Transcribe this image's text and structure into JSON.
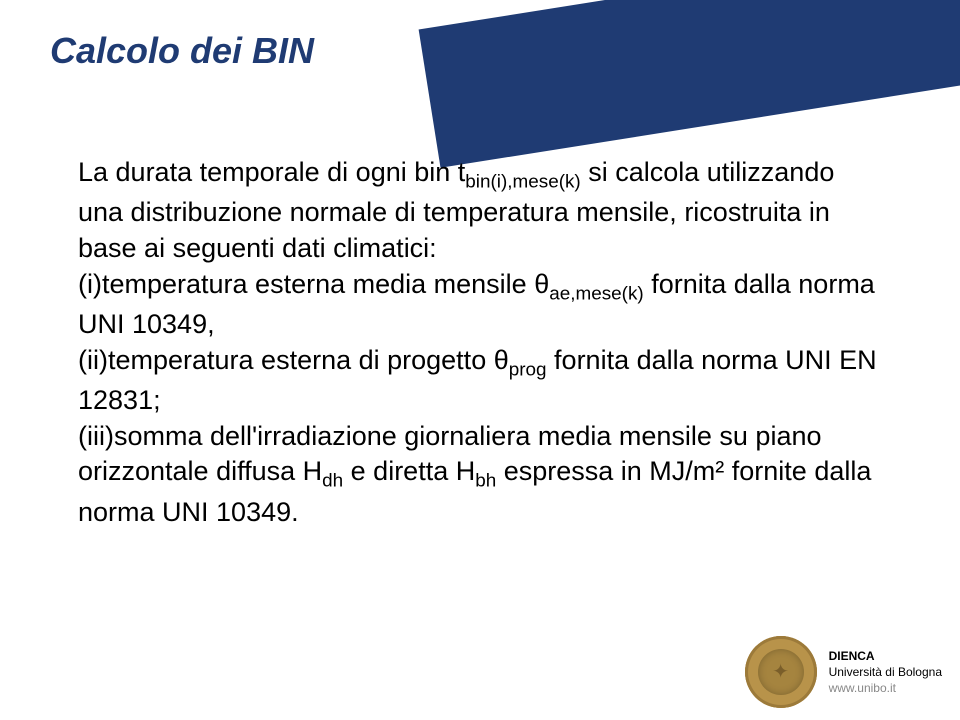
{
  "title": "Calcolo dei BIN",
  "body": {
    "intro": "La durata temporale di ogni bin t",
    "intro_sub": "bin(i),mese(k)",
    "intro_tail": " si calcola utilizzando una distribuzione normale di temperatura mensile, ricostruita in base ai seguenti dati climatici:",
    "item1_a": "(i)temperatura esterna media mensile θ",
    "item1_sub": "ae,mese(k)",
    "item1_b": " fornita dalla norma UNI 10349,",
    "item2_a": "(ii)temperatura esterna di progetto θ",
    "item2_sub": "prog",
    "item2_b": " fornita dalla norma UNI EN 12831;",
    "item3_a": "(iii)somma dell'irradiazione giornaliera media mensile su piano orizzontale diffusa H",
    "item3_sub1": "dh",
    "item3_mid": " e diretta H",
    "item3_sub2": "bh",
    "item3_b": " espressa in MJ/m² fornite dalla norma UNI 10349."
  },
  "footer": {
    "org": "DIENCA",
    "uni": "Università di Bologna",
    "url": "www.unibo.it"
  },
  "colors": {
    "brand_blue": "#1f3b73",
    "seal_gold": "#b8934a",
    "text": "#000000",
    "url_gray": "#888888",
    "background": "#ffffff"
  }
}
